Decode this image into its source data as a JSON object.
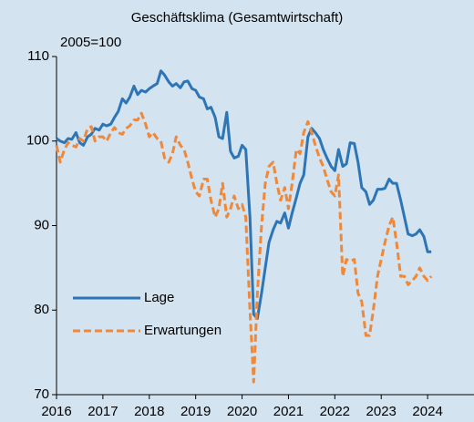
{
  "chart_data": {
    "type": "line",
    "title": "Geschäftsklima (Gesamtwirtschaft)",
    "annotation": "2005=100",
    "x": [
      2016,
      2016.08,
      2016.17,
      2016.25,
      2016.33,
      2016.42,
      2016.5,
      2016.58,
      2016.67,
      2016.75,
      2016.83,
      2016.92,
      2017,
      2017.08,
      2017.17,
      2017.25,
      2017.33,
      2017.42,
      2017.5,
      2017.58,
      2017.67,
      2017.75,
      2017.83,
      2017.92,
      2018,
      2018.08,
      2018.17,
      2018.25,
      2018.33,
      2018.42,
      2018.5,
      2018.58,
      2018.67,
      2018.75,
      2018.83,
      2018.92,
      2019,
      2019.08,
      2019.17,
      2019.25,
      2019.33,
      2019.42,
      2019.5,
      2019.58,
      2019.67,
      2019.75,
      2019.83,
      2019.92,
      2020,
      2020.08,
      2020.17,
      2020.25,
      2020.33,
      2020.42,
      2020.5,
      2020.58,
      2020.67,
      2020.75,
      2020.83,
      2020.92,
      2021,
      2021.08,
      2021.17,
      2021.25,
      2021.33,
      2021.42,
      2021.5,
      2021.58,
      2021.67,
      2021.75,
      2021.83,
      2021.92,
      2022,
      2022.08,
      2022.17,
      2022.25,
      2022.33,
      2022.42,
      2022.5,
      2022.58,
      2022.67,
      2022.75,
      2022.83,
      2022.92,
      2023,
      2023.08,
      2023.17,
      2023.25,
      2023.33,
      2023.42,
      2023.5,
      2023.58,
      2023.67,
      2023.75,
      2023.83,
      2023.92,
      2024,
      2024.08
    ],
    "series": [
      {
        "name": "Lage",
        "color": "#2e75b6",
        "dashed": false,
        "values": [
          100.3,
          100,
          99.8,
          100.3,
          100.2,
          101,
          99.8,
          99.5,
          100.5,
          100.8,
          101.5,
          101.3,
          102,
          101.8,
          102,
          102.8,
          103.5,
          105,
          104.5,
          105.2,
          106.5,
          105.5,
          106,
          105.8,
          106.2,
          106.5,
          106.8,
          108.3,
          107.8,
          107,
          106.5,
          106.8,
          106.3,
          107,
          107.1,
          106.2,
          106,
          105.2,
          105,
          103.8,
          104,
          102.8,
          100.5,
          100.3,
          103.4,
          98.8,
          98,
          98.2,
          99.5,
          99,
          91,
          79.5,
          79,
          82,
          85,
          88,
          89.5,
          90.5,
          90.3,
          91.5,
          89.7,
          91.5,
          93.3,
          95,
          96,
          100.5,
          101.5,
          101,
          100.3,
          99,
          98,
          97,
          96.5,
          99,
          97,
          97.3,
          99.8,
          99.7,
          97.5,
          94.5,
          94,
          92.5,
          93,
          94.3,
          94.3,
          94.4,
          95.5,
          95,
          95,
          93,
          91,
          89,
          88.8,
          89,
          89.5,
          88.7,
          86.9,
          86.9
        ]
      },
      {
        "name": "Erwartungen",
        "color": "#f0883a",
        "dashed": true,
        "values": [
          99.5,
          97.5,
          99,
          99.8,
          99.5,
          99.3,
          100.3,
          100,
          101.5,
          101.7,
          100,
          100.5,
          100.5,
          100,
          101,
          101.6,
          101,
          100.8,
          101.5,
          101.8,
          102.5,
          102.5,
          103.3,
          102,
          100.5,
          101,
          100.3,
          100,
          98,
          97.5,
          98.5,
          100.5,
          99.5,
          99,
          97.5,
          95.5,
          94,
          93.5,
          95.5,
          95.5,
          93,
          91,
          92,
          95,
          91,
          92,
          93.5,
          92,
          92.5,
          91,
          80,
          71.5,
          82,
          90,
          95,
          97,
          97.5,
          95,
          93,
          94.5,
          92,
          95,
          99,
          98.5,
          101,
          102.3,
          101,
          99.5,
          98,
          97,
          95.5,
          94,
          93.5,
          96,
          84,
          86,
          85.8,
          86,
          82,
          81,
          77,
          77,
          80,
          84,
          86,
          88,
          90,
          91,
          88,
          84,
          84,
          83,
          83.5,
          84,
          85,
          84,
          83.5,
          84
        ]
      }
    ],
    "xlim": [
      2016,
      2025
    ],
    "xticks": [
      2016,
      2017,
      2018,
      2019,
      2020,
      2021,
      2022,
      2023,
      2024
    ],
    "ylim": [
      70,
      110
    ],
    "yticks": [
      70,
      80,
      90,
      100,
      110
    ],
    "legend": "lower-left"
  }
}
